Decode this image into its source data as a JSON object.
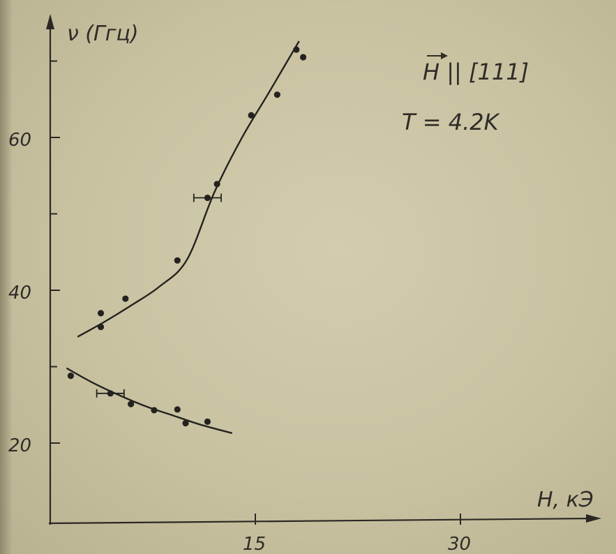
{
  "chart_data": {
    "type": "scatter",
    "title": "",
    "xlabel": "H, кЭ",
    "ylabel": "ν (Ггц)",
    "xlim": [
      0,
      40
    ],
    "ylim": [
      10,
      73
    ],
    "x_ticks": [
      15,
      30
    ],
    "x_tick_labels": [
      "15",
      "30"
    ],
    "y_ticks": [
      20,
      40,
      60
    ],
    "y_tick_labels": [
      "20",
      "40",
      "60"
    ],
    "annotations": [
      "H || [111]",
      "T = 4.2K"
    ],
    "grid": false,
    "legend": "none",
    "series": [
      {
        "points": [
          [
            3.7,
            37.0
          ],
          [
            3.7,
            35.2
          ],
          [
            5.5,
            38.9
          ],
          [
            9.3,
            43.9
          ],
          [
            11.5,
            52.1
          ],
          [
            12.2,
            53.9
          ],
          [
            14.7,
            62.9
          ],
          [
            16.6,
            65.6
          ],
          [
            18.0,
            71.5
          ],
          [
            18.5,
            70.5
          ]
        ],
        "fit": [
          [
            2.0,
            33.9
          ],
          [
            4.0,
            35.9
          ],
          [
            6.0,
            38.1
          ],
          [
            8.0,
            40.5
          ],
          [
            10.0,
            44.0
          ],
          [
            12.0,
            52.8
          ],
          [
            14.0,
            59.9
          ],
          [
            16.0,
            65.9
          ],
          [
            18.2,
            72.6
          ]
        ],
        "error_bars": [
          {
            "x": 11.5,
            "y": 52.1,
            "xerr": 1.0
          }
        ]
      },
      {
        "points": [
          [
            1.5,
            28.8
          ],
          [
            4.4,
            26.5
          ],
          [
            5.9,
            25.1
          ],
          [
            7.6,
            24.3
          ],
          [
            9.3,
            24.4
          ],
          [
            9.9,
            22.6
          ],
          [
            11.5,
            22.8
          ]
        ],
        "fit": [
          [
            1.2,
            29.8
          ],
          [
            3.0,
            28.0
          ],
          [
            5.0,
            26.3
          ],
          [
            7.0,
            24.8
          ],
          [
            9.0,
            23.6
          ],
          [
            11.0,
            22.4
          ],
          [
            13.3,
            21.3
          ]
        ],
        "error_bars": [
          {
            "x": 4.4,
            "y": 26.5,
            "xerr": 1.0
          }
        ]
      }
    ]
  }
}
